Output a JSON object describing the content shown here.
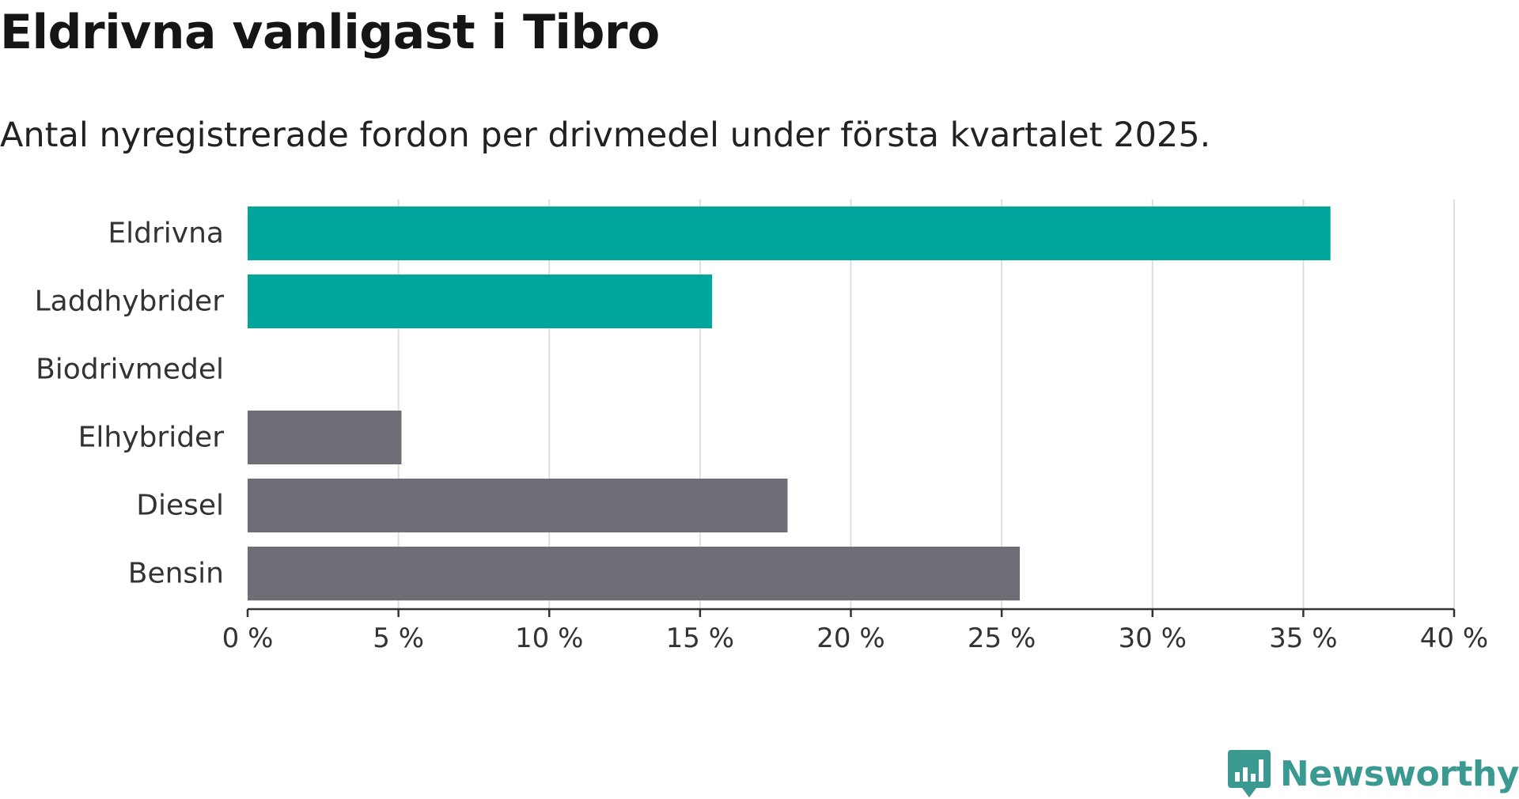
{
  "header": {
    "title": "Eldrivna vanligast i Tibro",
    "subtitle": "Antal nyregistrerade fordon per drivmedel under första kvartalet 2025."
  },
  "colors": {
    "highlight": "#00a59b",
    "default": "#6e6e76",
    "grid": "#dddddd",
    "axis": "#333333",
    "logo": "#3a9a91"
  },
  "chart_data": {
    "type": "bar",
    "orientation": "horizontal",
    "title": "Eldrivna vanligast i Tibro",
    "subtitle": "Antal nyregistrerade fordon per drivmedel under första kvartalet 2025.",
    "categories": [
      "Eldrivna",
      "Laddhybrider",
      "Biodrivmedel",
      "Elhybrider",
      "Diesel",
      "Bensin"
    ],
    "values": [
      35.9,
      15.4,
      0,
      5.1,
      17.9,
      25.6
    ],
    "bar_colors": [
      "highlight",
      "highlight",
      "default",
      "default",
      "default",
      "default"
    ],
    "xlim": [
      0,
      40
    ],
    "ticks": [
      0,
      5,
      10,
      15,
      20,
      25,
      30,
      35,
      40
    ],
    "tick_labels": [
      "0 %",
      "5 %",
      "10 %",
      "15 %",
      "20 %",
      "25 %",
      "30 %",
      "35 %",
      "40 %"
    ],
    "xlabel": "",
    "ylabel": "",
    "grid": "vertical"
  },
  "footer": {
    "brand": "Newsworthy",
    "logo_icon": "bar-chart-speech-bubble-icon"
  }
}
